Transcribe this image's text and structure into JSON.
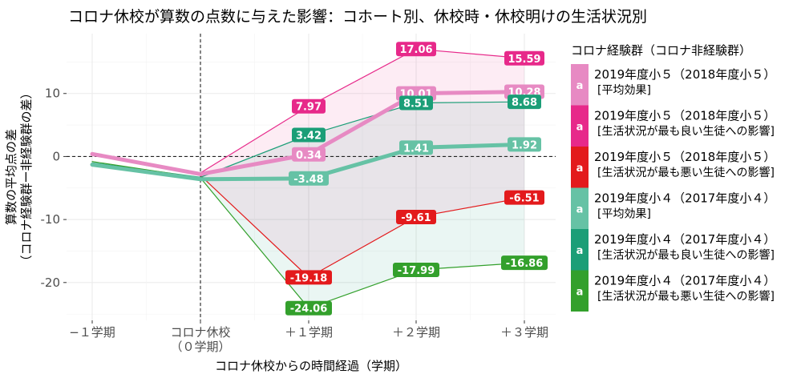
{
  "chart_data": {
    "type": "line",
    "title": "コロナ休校が算数の点数に与えた影響：コホート別、休校時・休校明けの生活状況別",
    "xlabel": "コロナ休校からの時間経過（学期）",
    "ylabel_line1": "算数の平均点の差",
    "ylabel_line2": "（コロナ経験群ー非経験群の差）",
    "x_categories": [
      "−１学期",
      "コロナ休校\n（０学期）",
      "＋１学期",
      "＋２学期",
      "＋３学期"
    ],
    "yticks": [
      -20,
      -10,
      0,
      10
    ],
    "ylim": [
      -26,
      19.5
    ],
    "legend_title": "コロナ経験群（コロナ非経験群）",
    "legend_glyph": "a",
    "series": [
      {
        "name_line1": "2019年度小５（2018年度小５）",
        "name_line2": "[平均効果]",
        "color": "#e78ac3",
        "width": 5,
        "values": [
          0.4,
          -2.8,
          0.34,
          10.01,
          10.28
        ],
        "labels": [
          "",
          "",
          "0.34",
          "10.01",
          "10.28"
        ]
      },
      {
        "name_line1": "2019年度小５（2018年度小５）",
        "name_line2": "[生活状況が最も良い生徒への影響]",
        "color": "#e7298a",
        "width": 1.2,
        "values": [
          0.3,
          -2.6,
          7.97,
          17.06,
          15.59
        ],
        "labels": [
          "",
          "",
          "7.97",
          "17.06",
          "15.59"
        ]
      },
      {
        "name_line1": "2019年度小５（2018年度小５）",
        "name_line2": "[生活状況が最も悪い生徒への影響]",
        "color": "#e31a1c",
        "width": 1.2,
        "values": [
          0.5,
          -3.0,
          -19.18,
          -9.61,
          -6.51
        ],
        "labels": [
          "",
          "",
          "-19.18",
          "-9.61",
          "-6.51"
        ]
      },
      {
        "name_line1": "2019年度小４（2017年度小４）",
        "name_line2": "[平均効果]",
        "color": "#66c2a5",
        "width": 5,
        "values": [
          -1.3,
          -3.6,
          -3.48,
          1.41,
          1.92
        ],
        "labels": [
          "",
          "",
          "-3.48",
          "1.41",
          "1.92"
        ]
      },
      {
        "name_line1": "2019年度小４（2017年度小４）",
        "name_line2": "[生活状況が最も良い生徒への影響]",
        "color": "#1b9e77",
        "width": 1.2,
        "values": [
          -1.0,
          -3.3,
          3.42,
          8.51,
          8.68
        ],
        "labels": [
          "",
          "",
          "3.42",
          "8.51",
          "8.68"
        ]
      },
      {
        "name_line1": "2019年度小４（2017年度小４）",
        "name_line2": "[生活状況が最も悪い生徒への影響]",
        "color": "#33a02c",
        "width": 1.2,
        "values": [
          -0.8,
          -3.4,
          -24.06,
          -17.99,
          -16.86
        ],
        "labels": [
          "",
          "",
          "-24.06",
          "-17.99",
          "-16.86"
        ]
      }
    ],
    "ribbons": [
      {
        "upper_series": 1,
        "lower_series": 2,
        "from_index": 1,
        "color": "#e7298a",
        "opacity": 0.09
      },
      {
        "upper_series": 4,
        "lower_series": 5,
        "from_index": 1,
        "color": "#1b9e77",
        "opacity": 0.09
      }
    ],
    "vline_index": 1,
    "hline_value": 0
  }
}
